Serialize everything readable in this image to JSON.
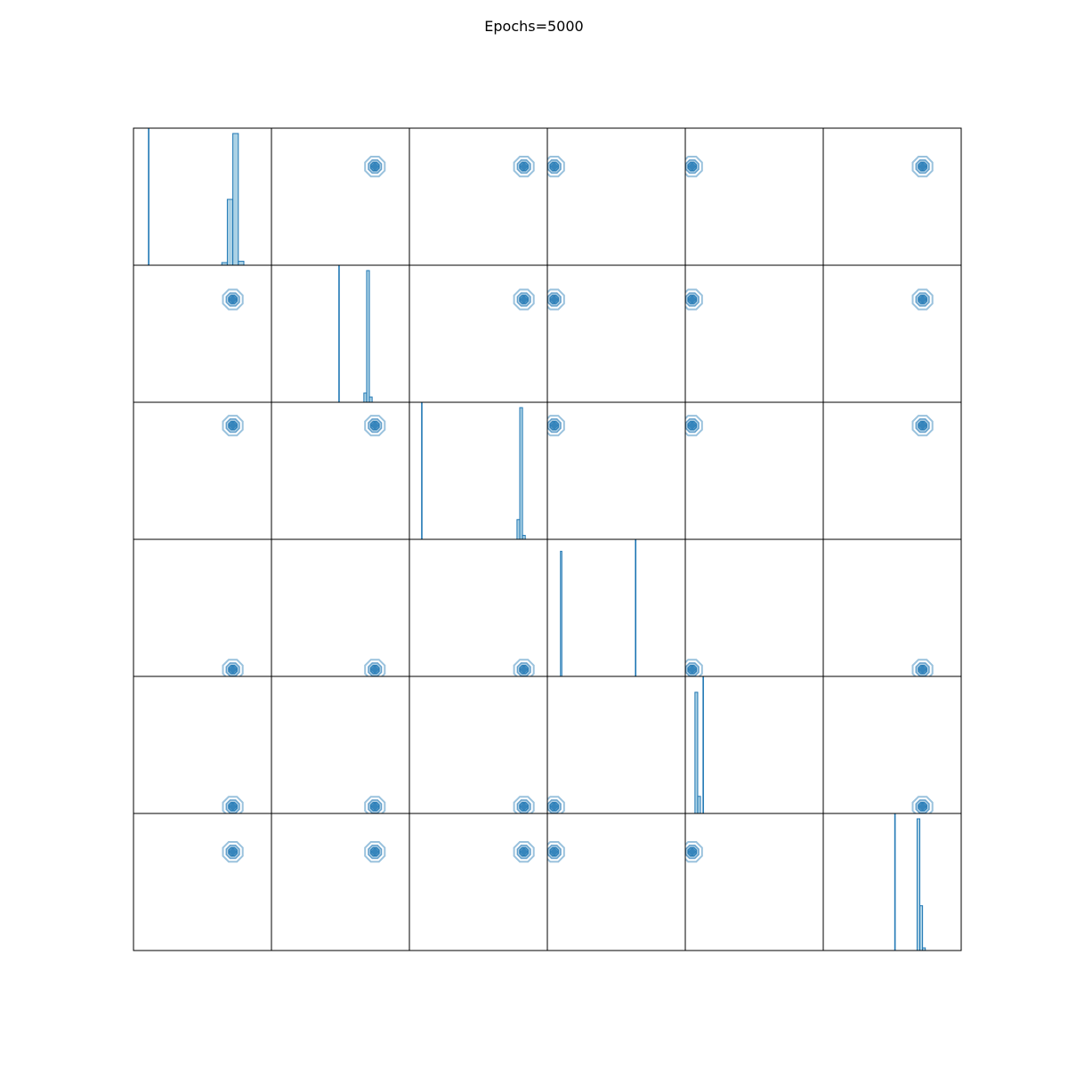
{
  "chart_data": {
    "type": "corner-plot",
    "title": "Epochs=5000",
    "grid_size": 6,
    "colors": {
      "fill": "#9ecae1",
      "line": "#1f77b4",
      "frame": "#000000"
    },
    "axis_range": [
      0,
      1
    ],
    "series_center": [
      0.72,
      0.75,
      0.83,
      0.05,
      0.05,
      0.72
    ],
    "histograms": [
      {
        "index": 0,
        "reference": 0.11,
        "bins": [
          0.66,
          0.7,
          0.74,
          0.78
        ],
        "heights": [
          0.02,
          0.5,
          1.0,
          0.03
        ]
      },
      {
        "index": 1,
        "reference": 0.49,
        "bins": [
          0.68,
          0.7,
          0.72,
          0.74
        ],
        "heights": [
          0.07,
          1.0,
          0.04,
          0.0
        ]
      },
      {
        "index": 2,
        "reference": 0.09,
        "bins": [
          0.79,
          0.81,
          0.83,
          0.85
        ],
        "heights": [
          0.15,
          1.0,
          0.03,
          0.0
        ]
      },
      {
        "index": 3,
        "reference": 0.64,
        "bins": [
          0.09,
          0.1,
          0.11
        ],
        "heights": [
          0.0,
          0.95,
          0.0
        ]
      },
      {
        "index": 4,
        "reference": 0.13,
        "bins": [
          0.08,
          0.1,
          0.12
        ],
        "heights": [
          0.92,
          0.13,
          0.0
        ]
      },
      {
        "index": 5,
        "reference": 0.52,
        "bins": [
          0.67,
          0.69,
          0.71,
          0.73
        ],
        "heights": [
          0.0,
          1.0,
          0.34,
          0.02
        ]
      }
    ]
  }
}
